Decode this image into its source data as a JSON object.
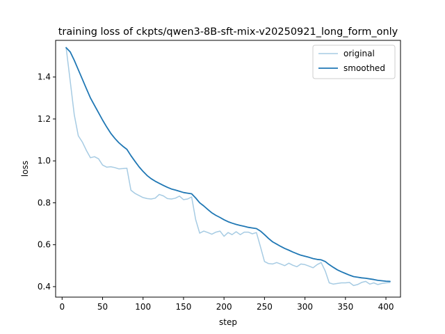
{
  "chart_data": {
    "type": "line",
    "title": "training loss of ckpts/qwen3-8B-sft-mix-v20250921_long_form_only",
    "xlabel": "step",
    "ylabel": "loss",
    "xlim": [
      -8,
      418
    ],
    "ylim": [
      0.35,
      1.575
    ],
    "xticks": [
      0,
      50,
      100,
      150,
      200,
      250,
      300,
      350,
      400
    ],
    "yticks": [
      0.4,
      0.6,
      0.8,
      1.0,
      1.2,
      1.4
    ],
    "ytick_labels": [
      "0.4",
      "0.6",
      "0.8",
      "1.0",
      "1.2",
      "1.4"
    ],
    "grid": false,
    "legend_position": "top-right",
    "series": [
      {
        "name": "original",
        "color": "#a6cbe3",
        "x": [
          5,
          10,
          15,
          20,
          25,
          30,
          35,
          40,
          45,
          50,
          55,
          60,
          65,
          70,
          75,
          80,
          85,
          90,
          95,
          100,
          105,
          110,
          115,
          120,
          125,
          130,
          135,
          140,
          145,
          150,
          155,
          160,
          165,
          170,
          175,
          180,
          185,
          190,
          195,
          200,
          205,
          210,
          215,
          220,
          225,
          230,
          235,
          240,
          245,
          250,
          255,
          260,
          265,
          270,
          275,
          280,
          285,
          290,
          295,
          300,
          305,
          310,
          315,
          320,
          325,
          330,
          335,
          340,
          345,
          350,
          355,
          360,
          365,
          370,
          375,
          380,
          385,
          390,
          395,
          400,
          405
        ],
        "y": [
          1.54,
          1.38,
          1.22,
          1.12,
          1.09,
          1.05,
          1.015,
          1.02,
          1.01,
          0.98,
          0.97,
          0.972,
          0.968,
          0.962,
          0.963,
          0.965,
          0.86,
          0.845,
          0.835,
          0.825,
          0.82,
          0.818,
          0.822,
          0.84,
          0.833,
          0.82,
          0.818,
          0.822,
          0.832,
          0.815,
          0.818,
          0.828,
          0.72,
          0.655,
          0.665,
          0.658,
          0.65,
          0.66,
          0.665,
          0.64,
          0.658,
          0.648,
          0.662,
          0.648,
          0.66,
          0.66,
          0.652,
          0.658,
          0.59,
          0.52,
          0.51,
          0.508,
          0.515,
          0.508,
          0.5,
          0.512,
          0.502,
          0.495,
          0.508,
          0.505,
          0.498,
          0.49,
          0.505,
          0.515,
          0.475,
          0.418,
          0.412,
          0.415,
          0.418,
          0.418,
          0.42,
          0.405,
          0.41,
          0.42,
          0.425,
          0.412,
          0.418,
          0.41,
          0.415,
          0.418,
          0.42
        ]
      },
      {
        "name": "smoothed",
        "color": "#1f77b4",
        "x": [
          5,
          10,
          15,
          20,
          25,
          30,
          35,
          40,
          45,
          50,
          55,
          60,
          65,
          70,
          75,
          80,
          85,
          90,
          95,
          100,
          105,
          110,
          115,
          120,
          125,
          130,
          135,
          140,
          145,
          150,
          155,
          160,
          165,
          170,
          175,
          180,
          185,
          190,
          195,
          200,
          205,
          210,
          215,
          220,
          225,
          230,
          235,
          240,
          245,
          250,
          255,
          260,
          265,
          270,
          275,
          280,
          285,
          290,
          295,
          300,
          305,
          310,
          315,
          320,
          325,
          330,
          335,
          340,
          345,
          350,
          355,
          360,
          365,
          370,
          375,
          380,
          385,
          390,
          395,
          400,
          405
        ],
        "y": [
          1.54,
          1.52,
          1.48,
          1.435,
          1.39,
          1.345,
          1.3,
          1.265,
          1.23,
          1.195,
          1.162,
          1.132,
          1.108,
          1.087,
          1.07,
          1.055,
          1.025,
          0.998,
          0.972,
          0.95,
          0.93,
          0.915,
          0.903,
          0.893,
          0.883,
          0.874,
          0.866,
          0.861,
          0.855,
          0.849,
          0.846,
          0.843,
          0.823,
          0.8,
          0.785,
          0.768,
          0.752,
          0.74,
          0.73,
          0.719,
          0.71,
          0.703,
          0.697,
          0.692,
          0.688,
          0.683,
          0.68,
          0.677,
          0.665,
          0.648,
          0.63,
          0.614,
          0.603,
          0.592,
          0.582,
          0.574,
          0.565,
          0.557,
          0.55,
          0.545,
          0.54,
          0.534,
          0.53,
          0.528,
          0.52,
          0.505,
          0.492,
          0.48,
          0.471,
          0.463,
          0.455,
          0.448,
          0.445,
          0.442,
          0.44,
          0.437,
          0.434,
          0.43,
          0.428,
          0.426,
          0.425
        ]
      }
    ]
  }
}
